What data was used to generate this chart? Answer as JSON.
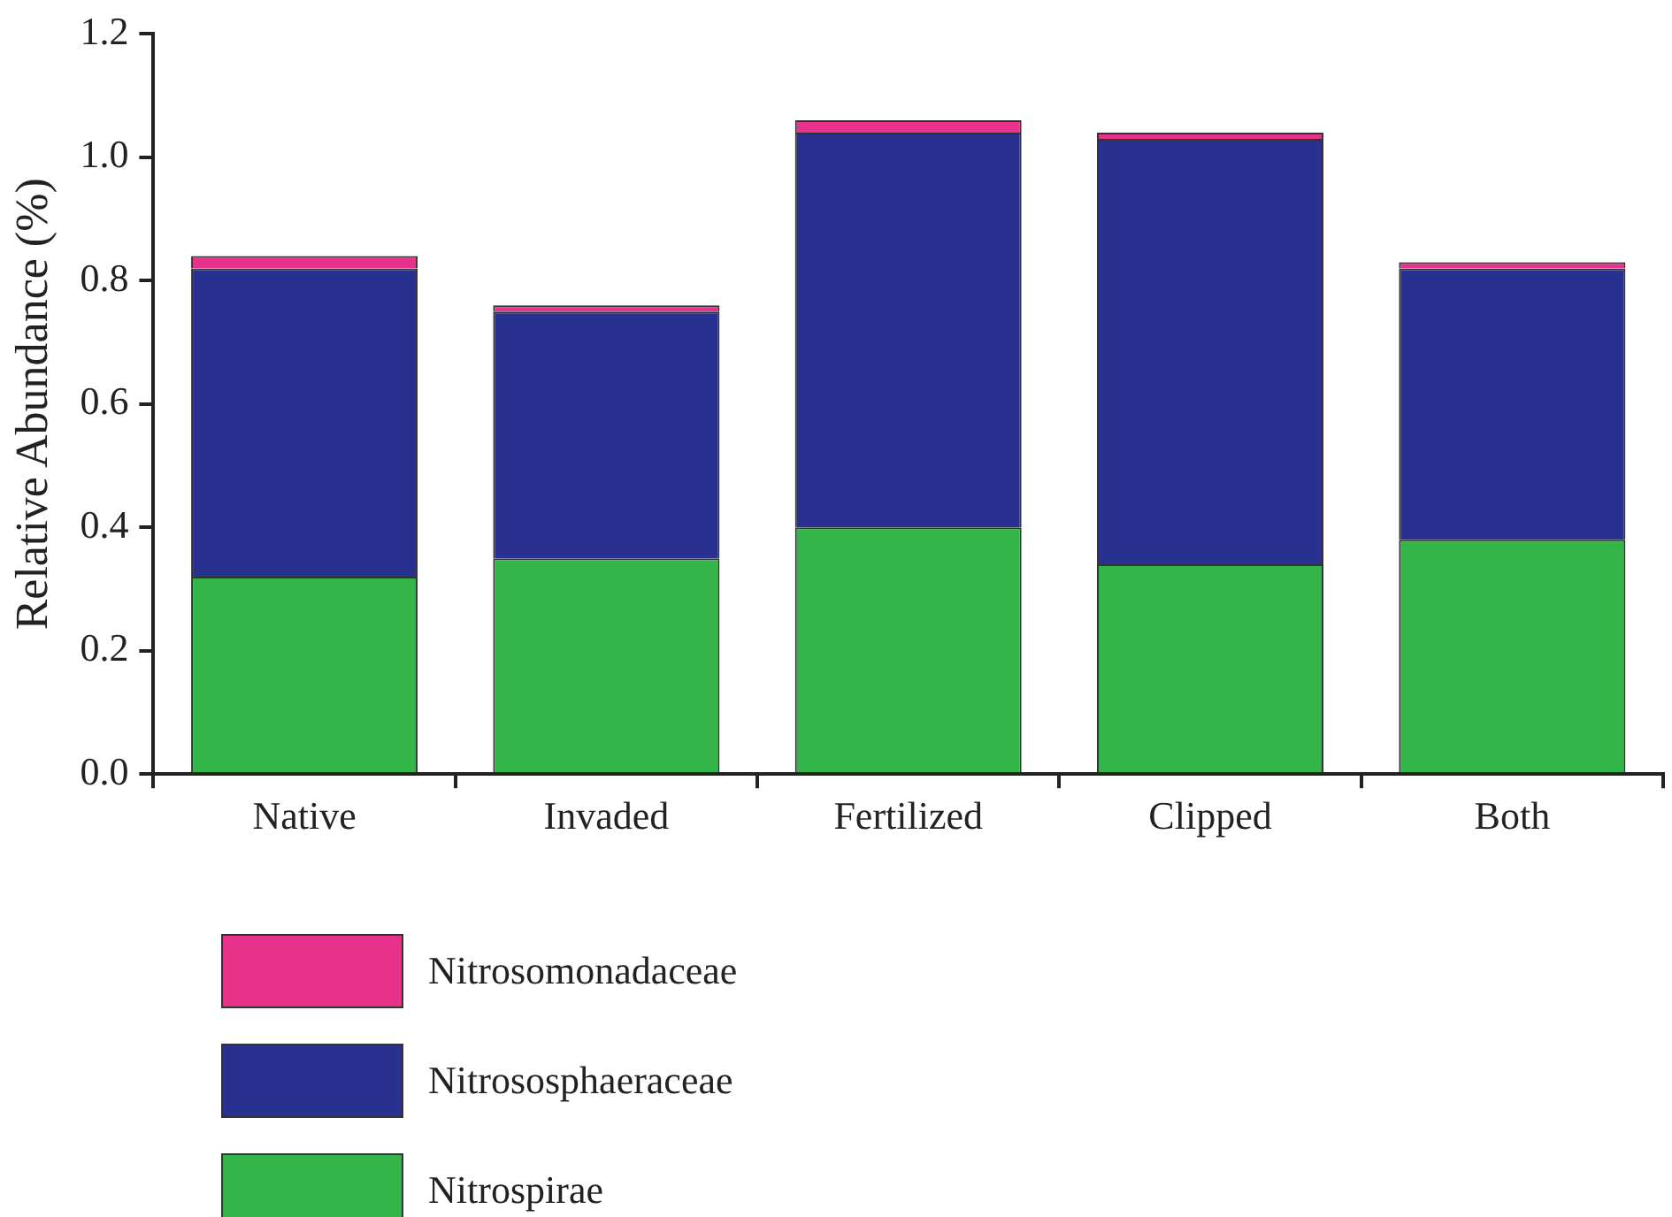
{
  "chart_data": {
    "type": "bar",
    "ylabel": "Relative Abundance (%)",
    "categories": [
      "Native",
      "Invaded",
      "Fertilized",
      "Clipped",
      "Both"
    ],
    "stacked": true,
    "series": [
      {
        "name": "Nitrospirae",
        "color": "#33b54a",
        "values": [
          0.32,
          0.35,
          0.4,
          0.34,
          0.38
        ]
      },
      {
        "name": "Nitrososphaeraceae",
        "color": "#283190",
        "values": [
          0.5,
          0.4,
          0.64,
          0.69,
          0.44
        ]
      },
      {
        "name": "Nitrosomonadaceae",
        "color": "#e8318a",
        "values": [
          0.02,
          0.01,
          0.02,
          0.01,
          0.01
        ]
      }
    ],
    "ylim": [
      0,
      1.2
    ],
    "yticks": [
      {
        "value": 0,
        "label": "0.0"
      },
      {
        "value": 0.2,
        "label": "0.2"
      },
      {
        "value": 0.4,
        "label": "0.4"
      },
      {
        "value": 0.6,
        "label": "0.6"
      },
      {
        "value": 0.8,
        "label": "0.8"
      },
      {
        "value": 1,
        "label": "1.0"
      },
      {
        "value": 1.2,
        "label": "1.2"
      }
    ],
    "grid": false,
    "legend": "bottom"
  }
}
